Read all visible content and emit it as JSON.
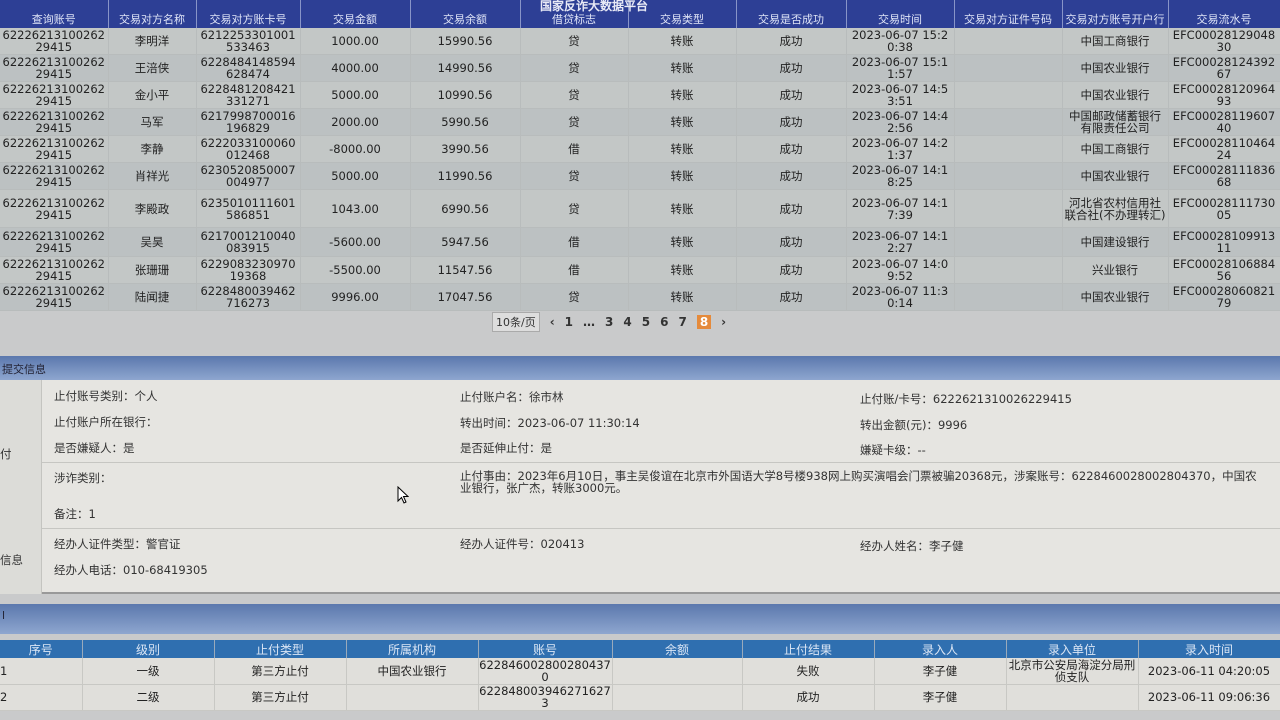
{
  "app_title": "国家反诈大数据平台",
  "transactions": {
    "columns": [
      "查询账号",
      "交易对方名称",
      "交易对方账卡号",
      "交易金额",
      "交易余额",
      "借贷标志",
      "交易类型",
      "交易是否成功",
      "交易时间",
      "交易对方证件号码",
      "交易对方账号开户行",
      "交易流水号"
    ],
    "rows": [
      [
        "6222621310026229415",
        "李明洋",
        "6212253301001533463",
        "1000.00",
        "15990.56",
        "贷",
        "转账",
        "成功",
        "2023-06-07 15:20:38",
        "",
        "中国工商银行",
        "EFC0002812904830"
      ],
      [
        "6222621310026229415",
        "王涪侠",
        "6228484148594628474",
        "4000.00",
        "14990.56",
        "贷",
        "转账",
        "成功",
        "2023-06-07 15:11:57",
        "",
        "中国农业银行",
        "EFC0002812439267"
      ],
      [
        "6222621310026229415",
        "金小平",
        "6228481208421331271",
        "5000.00",
        "10990.56",
        "贷",
        "转账",
        "成功",
        "2023-06-07 14:53:51",
        "",
        "中国农业银行",
        "EFC0002812096493"
      ],
      [
        "6222621310026229415",
        "马军",
        "6217998700016196829",
        "2000.00",
        "5990.56",
        "贷",
        "转账",
        "成功",
        "2023-06-07 14:42:56",
        "",
        "中国邮政储蓄银行有限责任公司",
        "EFC0002811960740"
      ],
      [
        "6222621310026229415",
        "李静",
        "6222033100060012468",
        "-8000.00",
        "3990.56",
        "借",
        "转账",
        "成功",
        "2023-06-07 14:21:37",
        "",
        "中国工商银行",
        "EFC0002811046424"
      ],
      [
        "6222621310026229415",
        "肖祥光",
        "6230520850007004977",
        "5000.00",
        "11990.56",
        "贷",
        "转账",
        "成功",
        "2023-06-07 14:18:25",
        "",
        "中国农业银行",
        "EFC0002811183668"
      ],
      [
        "6222621310026229415",
        "李殿政",
        "6235010111601586851",
        "1043.00",
        "6990.56",
        "贷",
        "转账",
        "成功",
        "2023-06-07 14:17:39",
        "",
        "河北省农村信用社联合社(不办理转汇)",
        "EFC0002811173005"
      ],
      [
        "6222621310026229415",
        "吴昊",
        "6217001210040083915",
        "-5600.00",
        "5947.56",
        "借",
        "转账",
        "成功",
        "2023-06-07 14:12:27",
        "",
        "中国建设银行",
        "EFC0002810991311"
      ],
      [
        "6222621310026229415",
        "张珊珊",
        "622908323097019368",
        "-5500.00",
        "11547.56",
        "借",
        "转账",
        "成功",
        "2023-06-07 14:09:52",
        "",
        "兴业银行",
        "EFC0002810688456"
      ],
      [
        "6222621310026229415",
        "陆闻捷",
        "6228480039462716273",
        "9996.00",
        "17047.56",
        "贷",
        "转账",
        "成功",
        "2023-06-07 11:30:14",
        "",
        "中国农业银行",
        "EFC0002806082179"
      ]
    ]
  },
  "pagination": {
    "page_size": "10条/页",
    "pages": [
      "1",
      "…",
      "3",
      "4",
      "5",
      "6",
      "7",
      "8"
    ],
    "current": "8",
    "prev": "‹",
    "next": "›"
  },
  "submit_section": {
    "title": "提交信息",
    "side_label_1": "付",
    "side_label_2": "信息",
    "fields": {
      "account_type": "止付账号类别：个人",
      "account_name": "止付账户名：徐市林",
      "account_no": "止付账/卡号：6222621310026229415",
      "account_bank": "止付账户所在银行：",
      "out_time": "转出时间：2023-06-07 11:30:14",
      "out_amount": "转出金额(元)：9996",
      "is_suspect": "是否嫌疑人：是",
      "extend": "是否延伸止付：是",
      "suspect_level": "嫌疑卡级：--",
      "fraud_type": "涉诈类别：",
      "reason": "止付事由：2023年6月10日，事主吴俊谊在北京市外国语大学8号楼938网上购买演唱会门票被骗20368元，涉案账号：6228460028002804370，中国农业银行，张广杰，转账3000元。",
      "remark": "备注：1",
      "officer_id_type": "经办人证件类型：警官证",
      "officer_id": "经办人证件号：020413",
      "officer_name": "经办人姓名：李子健",
      "officer_phone": "经办人电话：010-68419305"
    }
  },
  "stop_section": {
    "title": "l",
    "columns": [
      "序号",
      "级别",
      "止付类型",
      "所属机构",
      "账号",
      "余额",
      "止付结果",
      "录入人",
      "录入单位",
      "录入时间"
    ],
    "rows": [
      [
        "1",
        "一级",
        "第三方止付",
        "中国农业银行",
        "6228460028002804370",
        "",
        "失败",
        "李子健",
        "北京市公安局海淀分局刑侦支队",
        "2023-06-11 04:20:05"
      ],
      [
        "2",
        "二级",
        "第三方止付",
        "",
        "6228480039462716273",
        "",
        "成功",
        "李子健",
        "",
        "2023-06-11 09:06:36"
      ]
    ]
  }
}
